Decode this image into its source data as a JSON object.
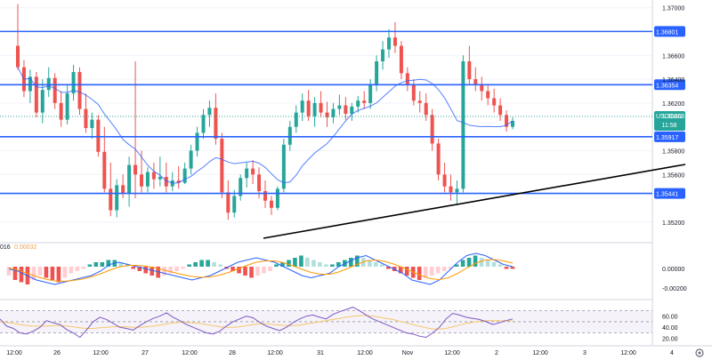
{
  "chart_data": [
    {
      "type": "candlestick",
      "pair": "USDCAD",
      "last_price": "1.36053",
      "countdown": "11:58",
      "y_ticks": [
        "1.37000",
        "1.36600",
        "1.36400",
        "1.36200",
        "1.35800",
        "1.35600",
        "1.35200"
      ],
      "ylim": [
        1.3505,
        1.3705
      ],
      "horizontal_levels": [
        "1.36801",
        "1.36354",
        "1.35917",
        "1.35441"
      ],
      "trendline": {
        "from": [
          "26 12:00 (approx)",
          1.3518
        ],
        "to": [
          "2 Nov 12:00 (approx)",
          1.3566
        ]
      },
      "moving_average": "line",
      "candles": [
        [
          1.3668,
          1.3703,
          1.3648,
          1.365
        ],
        [
          1.365,
          1.3656,
          1.3625,
          1.363
        ],
        [
          1.363,
          1.3648,
          1.362,
          1.3642
        ],
        [
          1.3642,
          1.3646,
          1.3608,
          1.3612
        ],
        [
          1.3612,
          1.364,
          1.3603,
          1.3631
        ],
        [
          1.3631,
          1.365,
          1.3625,
          1.3641
        ],
        [
          1.3641,
          1.3645,
          1.3615,
          1.362
        ],
        [
          1.362,
          1.363,
          1.36,
          1.3606
        ],
        [
          1.3606,
          1.3635,
          1.3602,
          1.3628
        ],
        [
          1.3628,
          1.3652,
          1.3622,
          1.3646
        ],
        [
          1.3646,
          1.365,
          1.361,
          1.3615
        ],
        [
          1.3615,
          1.3628,
          1.3595,
          1.3599
        ],
        [
          1.3599,
          1.3612,
          1.359,
          1.3606
        ],
        [
          1.3606,
          1.361,
          1.3575,
          1.3579
        ],
        [
          1.3579,
          1.36,
          1.3545,
          1.3548
        ],
        [
          1.3548,
          1.357,
          1.3525,
          1.353
        ],
        [
          1.353,
          1.3556,
          1.3524,
          1.3551
        ],
        [
          1.3551,
          1.356,
          1.354,
          1.3544
        ],
        [
          1.3544,
          1.3575,
          1.3533,
          1.3568
        ],
        [
          1.3568,
          1.3655,
          1.354,
          1.356
        ],
        [
          1.356,
          1.358,
          1.3545,
          1.355
        ],
        [
          1.355,
          1.3566,
          1.3545,
          1.3562
        ],
        [
          1.3562,
          1.357,
          1.3548,
          1.3556
        ],
        [
          1.3556,
          1.3575,
          1.355,
          1.3558
        ],
        [
          1.3558,
          1.357,
          1.3545,
          1.355
        ],
        [
          1.355,
          1.3562,
          1.3546,
          1.3555
        ],
        [
          1.3555,
          1.3567,
          1.3548,
          1.3553
        ],
        [
          1.3553,
          1.357,
          1.3552,
          1.3565
        ],
        [
          1.3565,
          1.3585,
          1.356,
          1.358
        ],
        [
          1.358,
          1.36,
          1.3575,
          1.3595
        ],
        [
          1.3595,
          1.3615,
          1.359,
          1.361
        ],
        [
          1.361,
          1.3622,
          1.36,
          1.3616
        ],
        [
          1.3616,
          1.3628,
          1.3585,
          1.359
        ],
        [
          1.359,
          1.3595,
          1.354,
          1.3545
        ],
        [
          1.3545,
          1.3555,
          1.3522,
          1.3528
        ],
        [
          1.3528,
          1.3547,
          1.3524,
          1.3542
        ],
        [
          1.3542,
          1.356,
          1.3538,
          1.3557
        ],
        [
          1.3557,
          1.357,
          1.3549,
          1.3565
        ],
        [
          1.3565,
          1.3572,
          1.3552,
          1.356
        ],
        [
          1.356,
          1.3566,
          1.354,
          1.3546
        ],
        [
          1.3546,
          1.3555,
          1.3532,
          1.3538
        ],
        [
          1.3538,
          1.3542,
          1.3526,
          1.3532
        ],
        [
          1.3532,
          1.355,
          1.353,
          1.3548
        ],
        [
          1.3548,
          1.359,
          1.3545,
          1.3585
        ],
        [
          1.3585,
          1.3605,
          1.358,
          1.36
        ],
        [
          1.36,
          1.3618,
          1.3595,
          1.3612
        ],
        [
          1.3612,
          1.3628,
          1.3605,
          1.3622
        ],
        [
          1.3622,
          1.3631,
          1.3605,
          1.3609
        ],
        [
          1.3609,
          1.3625,
          1.36,
          1.362
        ],
        [
          1.362,
          1.363,
          1.3608,
          1.3612
        ],
        [
          1.3612,
          1.3621,
          1.36,
          1.3608
        ],
        [
          1.3608,
          1.362,
          1.3603,
          1.3615
        ],
        [
          1.3615,
          1.3627,
          1.361,
          1.3618
        ],
        [
          1.3618,
          1.3625,
          1.3606,
          1.3611
        ],
        [
          1.3611,
          1.362,
          1.3605,
          1.3617
        ],
        [
          1.3617,
          1.3626,
          1.3612,
          1.3622
        ],
        [
          1.3622,
          1.363,
          1.3615,
          1.362
        ],
        [
          1.362,
          1.364,
          1.3615,
          1.3635
        ],
        [
          1.3635,
          1.366,
          1.363,
          1.3655
        ],
        [
          1.3655,
          1.3672,
          1.3648,
          1.3665
        ],
        [
          1.3665,
          1.3682,
          1.3658,
          1.3675
        ],
        [
          1.3675,
          1.3688,
          1.3662,
          1.3668
        ],
        [
          1.3668,
          1.3672,
          1.364,
          1.3645
        ],
        [
          1.3645,
          1.365,
          1.363,
          1.3635
        ],
        [
          1.3635,
          1.364,
          1.3618,
          1.3622
        ],
        [
          1.3622,
          1.363,
          1.3612,
          1.362
        ],
        [
          1.362,
          1.3628,
          1.3605,
          1.361
        ],
        [
          1.361,
          1.3615,
          1.358,
          1.3586
        ],
        [
          1.3586,
          1.359,
          1.3555,
          1.356
        ],
        [
          1.356,
          1.357,
          1.3545,
          1.355
        ],
        [
          1.355,
          1.356,
          1.3538,
          1.3545
        ],
        [
          1.3545,
          1.3555,
          1.3535,
          1.3548
        ],
        [
          1.3548,
          1.366,
          1.3545,
          1.3655
        ],
        [
          1.3655,
          1.3668,
          1.3635,
          1.364
        ],
        [
          1.364,
          1.365,
          1.363,
          1.3636
        ],
        [
          1.3636,
          1.3642,
          1.3622,
          1.363
        ],
        [
          1.363,
          1.3636,
          1.3618,
          1.3624
        ],
        [
          1.3624,
          1.3632,
          1.3612,
          1.3618
        ],
        [
          1.3618,
          1.3624,
          1.3605,
          1.361
        ],
        [
          1.361,
          1.3614,
          1.3596,
          1.36
        ],
        [
          1.36,
          1.3608,
          1.3598,
          1.3605
        ]
      ],
      "x_labels": [
        "12:00",
        "26",
        "12:00",
        "27",
        "12:00",
        "28",
        "12:00",
        "31",
        "12:00",
        "Nov",
        "12:00",
        "2",
        "12:00",
        "3",
        "12:00",
        "4"
      ]
    },
    {
      "type": "macd",
      "params_visible": "016",
      "value_visible": "0.00032",
      "y_ticks": [
        "0.00000",
        "-0.00200"
      ],
      "histogram": [
        -2,
        -3,
        -3.5,
        -4,
        -3,
        -2,
        -2.5,
        -3,
        -3.5,
        -2.5,
        -1.5,
        -1,
        -0.5,
        0.5,
        1,
        1,
        1.5,
        1.5,
        1,
        0.5,
        -0.5,
        -1,
        -1.5,
        -2,
        -2.5,
        -2,
        -1.5,
        -1,
        -0.5,
        0.5,
        1,
        1.5,
        1.5,
        1,
        0.5,
        -0.5,
        -1,
        -1.5,
        -2,
        -2.5,
        -2,
        -1.5,
        -1,
        0.5,
        1,
        1.5,
        2,
        2.5,
        2,
        1.5,
        1,
        0.5,
        0.5,
        1,
        1.5,
        2,
        2.5,
        2,
        1.5,
        1,
        0.5,
        -0.5,
        -1,
        -1.5,
        -2,
        -2.5,
        -3,
        -2.5,
        -2,
        -1.5,
        -1,
        -0.5,
        0.5,
        1.5,
        2,
        2.5,
        2,
        1.5,
        1,
        0.5,
        -0.5,
        -0.5
      ],
      "macd_line": [
        -0.5,
        -1,
        -2,
        -3,
        -3.5,
        -4,
        -3.5,
        -3,
        -2.5,
        -2,
        -1,
        0.5,
        1,
        0.5,
        0,
        -0.5,
        -1,
        -1.5,
        -2,
        -2.5,
        -3,
        -2.5,
        -2,
        -1,
        0,
        1,
        1.5,
        2,
        1.5,
        1,
        0,
        -1,
        -2,
        -2.5,
        -2,
        -1.5,
        0,
        1,
        2,
        2.5,
        1.5,
        0.5,
        -0.5,
        -1.5,
        -3,
        -3.5,
        -4,
        -3,
        -1,
        1,
        2.5,
        3,
        2.5,
        1.5,
        0.5,
        0
      ],
      "signal_line": [
        -0.3,
        -0.8,
        -1.5,
        -2.2,
        -2.8,
        -3.2,
        -3.3,
        -3.1,
        -2.8,
        -2.3,
        -1.6,
        -0.8,
        -0.1,
        0.3,
        0.3,
        0.1,
        -0.3,
        -0.8,
        -1.3,
        -1.8,
        -2.2,
        -2.4,
        -2.3,
        -1.9,
        -1.3,
        -0.5,
        0.3,
        1,
        1.3,
        1.3,
        0.9,
        0.2,
        -0.6,
        -1.3,
        -1.7,
        -1.7,
        -1.2,
        -0.4,
        0.5,
        1.3,
        1.5,
        1.2,
        0.6,
        -0.2,
        -1.1,
        -2,
        -2.7,
        -2.9,
        -2.5,
        -1.5,
        -0.3,
        0.8,
        1.5,
        1.6,
        1.3,
        0.8
      ]
    },
    {
      "type": "rsi",
      "y_ticks": [
        "60.00",
        "40.00",
        "20.00"
      ],
      "levels": [
        70,
        50,
        30
      ],
      "ylim": [
        10,
        85
      ],
      "rsi": [
        55,
        42,
        38,
        30,
        28,
        33,
        40,
        52,
        48,
        45,
        36,
        30,
        22,
        35,
        50,
        58,
        54,
        47,
        40,
        38,
        35,
        43,
        50,
        56,
        60,
        66,
        58,
        52,
        45,
        40,
        35,
        30,
        28,
        33,
        42,
        50,
        55,
        60,
        57,
        49,
        42,
        38,
        34,
        40,
        48,
        55,
        60,
        62,
        58,
        55,
        63,
        68,
        72,
        76,
        70,
        62,
        55,
        50,
        45,
        40,
        35,
        30,
        28,
        24,
        22,
        30,
        40,
        55,
        65,
        62,
        58,
        56,
        54,
        50,
        45,
        48,
        52,
        55
      ],
      "rsi_ma": [
        50,
        49,
        47,
        45,
        43,
        42,
        42,
        42,
        43,
        43,
        42,
        41,
        39,
        38,
        38,
        39,
        40,
        41,
        41,
        41,
        40,
        40,
        41,
        42,
        44,
        46,
        48,
        49,
        49,
        48,
        47,
        45,
        43,
        41,
        40,
        40,
        41,
        43,
        45,
        46,
        46,
        45,
        44,
        43,
        43,
        44,
        46,
        48,
        50,
        52,
        54,
        56,
        58,
        60,
        61,
        61,
        60,
        58,
        56,
        54,
        51,
        48,
        45,
        42,
        39,
        37,
        37,
        38,
        41,
        44,
        47,
        49,
        51,
        52,
        52,
        52,
        52,
        52
      ]
    }
  ]
}
